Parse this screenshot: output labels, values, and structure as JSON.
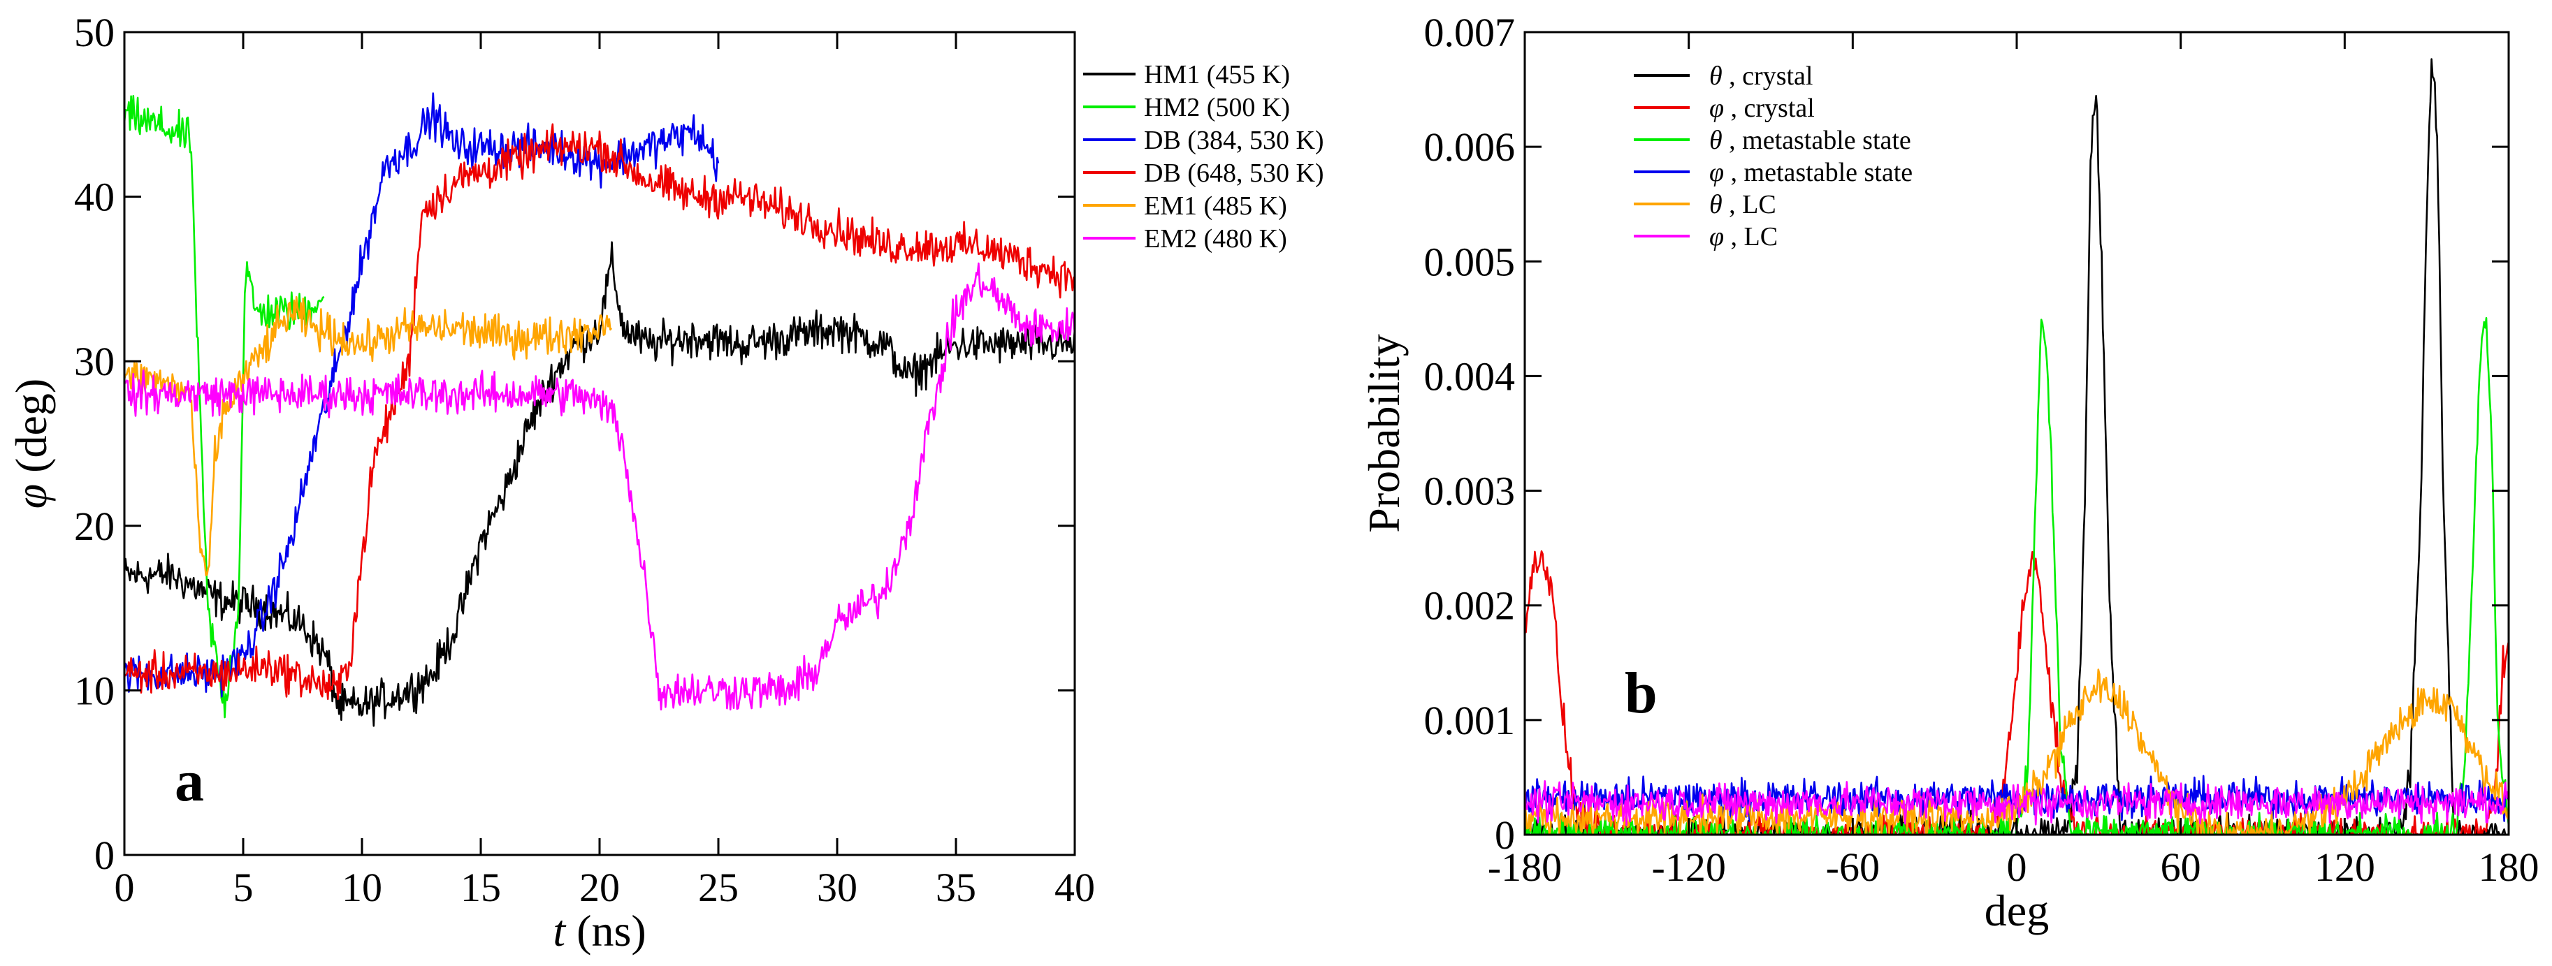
{
  "chart_data": [
    {
      "type": "line",
      "panel_label": "a",
      "xlabel_sym": "t",
      "xlabel_rest": " (ns)",
      "ylabel_sym": "φ",
      "ylabel_rest": " (deg)",
      "xlim": [
        0,
        40
      ],
      "ylim": [
        0,
        50
      ],
      "xticks": [
        0,
        5,
        10,
        15,
        20,
        25,
        30,
        35,
        40
      ],
      "yticks": [
        0,
        10,
        20,
        30,
        40,
        50
      ],
      "legend_position": "outside-right",
      "noise": 0.9,
      "series": [
        {
          "name": "HM1 (455 K)",
          "color": "#000000",
          "x": [
            0,
            2,
            4,
            6,
            7.5,
            8.5,
            9,
            10,
            11,
            12,
            13,
            14,
            15,
            16,
            17,
            18,
            19,
            20,
            20.5,
            21,
            22,
            24,
            26,
            28,
            30,
            32,
            33,
            35,
            36,
            38,
            40
          ],
          "y": [
            17,
            17,
            15.5,
            15,
            14,
            12,
            9,
            9,
            9.5,
            10,
            11,
            14,
            19,
            22,
            26,
            29,
            31,
            32,
            36,
            32,
            31,
            31.5,
            31,
            31.5,
            32,
            31,
            29,
            31,
            31,
            31,
            31
          ]
        },
        {
          "name": "HM2 (500 K)",
          "color": "#00ee00",
          "x": [
            0,
            1,
            2,
            2.8,
            3.1,
            3.5,
            4.2,
            4.8,
            5.1,
            5.5,
            6.5,
            7.5,
            8.4
          ],
          "y": [
            45,
            44.5,
            44,
            43.5,
            30,
            15,
            9,
            15,
            36,
            33,
            33,
            33,
            34
          ]
        },
        {
          "name": "DB (384, 530 K)",
          "color": "#0000ee",
          "x": [
            0,
            2,
            4,
            5,
            6,
            7,
            8,
            9,
            10,
            11,
            12,
            13,
            14,
            16,
            18,
            20,
            22,
            24,
            25
          ],
          "y": [
            11,
            11,
            11,
            12,
            15,
            19,
            25,
            30,
            36,
            42,
            43,
            45,
            43,
            43,
            43,
            42,
            43,
            44,
            42
          ]
        },
        {
          "name": "DB (648, 530 K)",
          "color": "#ee0000",
          "x": [
            0,
            2,
            4,
            6,
            8,
            9,
            9.5,
            10,
            10.5,
            11,
            12,
            12.5,
            14,
            16,
            18,
            20,
            22,
            24,
            26,
            28,
            30,
            32,
            34,
            36,
            38,
            40
          ],
          "y": [
            11,
            11,
            11,
            11.5,
            10.5,
            10,
            12,
            18,
            24,
            26,
            30,
            39,
            41,
            42,
            43,
            43,
            41,
            40,
            40,
            39,
            38,
            37,
            37,
            37,
            36,
            35
          ]
        },
        {
          "name": "EM1 (485 K)",
          "color": "#ffa500",
          "x": [
            0,
            1,
            2,
            2.8,
            3.1,
            3.5,
            3.8,
            4.2,
            5,
            6,
            7,
            8,
            10,
            12,
            14,
            16,
            18,
            20,
            20.5
          ],
          "y": [
            29,
            29,
            28.5,
            28,
            20,
            16,
            24,
            27,
            29,
            31,
            33,
            32,
            31,
            32,
            32,
            31.5,
            31.5,
            32,
            33
          ]
        },
        {
          "name": "EM2 (480 K)",
          "color": "#ff00ff",
          "x": [
            0,
            4,
            8,
            12,
            16,
            19,
            20.5,
            21,
            21.5,
            22,
            22.5,
            23,
            24,
            26,
            28,
            29,
            30,
            31,
            32,
            33,
            34,
            35,
            36,
            38,
            40
          ],
          "y": [
            28,
            28,
            28,
            28,
            28,
            28,
            27,
            25,
            20,
            16,
            10,
            10,
            10,
            10,
            10,
            11,
            14,
            15,
            16,
            20,
            27,
            33,
            35,
            32,
            32
          ]
        }
      ]
    },
    {
      "type": "line",
      "panel_label": "b",
      "xlabel": "deg",
      "ylabel": "Probability",
      "xlim": [
        -180,
        180
      ],
      "ylim": [
        0,
        0.007
      ],
      "xticks": [
        -180,
        -120,
        -60,
        0,
        60,
        120,
        180
      ],
      "yticks": [
        0,
        0.001,
        0.002,
        0.003,
        0.004,
        0.005,
        0.006,
        0.007
      ],
      "ytick_labels": [
        "0",
        "0.001",
        "0.002",
        "0.003",
        "0.004",
        "0.005",
        "0.006",
        "0.007"
      ],
      "legend_position": "top-left",
      "noise": 0.00012,
      "series": [
        {
          "name_sym": "θ",
          "name_rest": " , crystal",
          "color": "#000000",
          "x": [
            -180,
            18,
            22,
            25,
            27,
            29,
            31,
            34,
            38,
            140,
            144,
            148,
            150,
            152,
            154,
            156,
            160,
            180
          ],
          "y": [
            0,
            0,
            0.0005,
            0.003,
            0.0058,
            0.0066,
            0.005,
            0.002,
            0,
            0,
            0.0005,
            0.003,
            0.0055,
            0.0068,
            0.006,
            0.003,
            0,
            0
          ]
        },
        {
          "name_sym": "φ",
          "name_rest": " , crystal",
          "color": "#ee0000",
          "x": [
            -180,
            -177,
            -174,
            -170,
            -166,
            -162,
            -155,
            -10,
            -4,
            2,
            6,
            8,
            12,
            16,
            20,
            25,
            170,
            175,
            178,
            180
          ],
          "y": [
            0.0018,
            0.0023,
            0.0025,
            0.0021,
            0.001,
            0.0003,
            0,
            0,
            0.0005,
            0.0019,
            0.0025,
            0.0023,
            0.0013,
            0.0005,
            0.0001,
            0,
            0,
            0.0003,
            0.0015,
            0.0017
          ]
        },
        {
          "name_sym": "θ",
          "name_rest": " , metastable state",
          "color": "#00ee00",
          "x": [
            -180,
            0,
            4,
            7,
            9,
            11,
            13,
            16,
            20,
            160,
            164,
            167,
            170,
            172,
            174,
            176,
            180
          ],
          "y": [
            0,
            0,
            0.0005,
            0.003,
            0.0045,
            0.0042,
            0.003,
            0.0008,
            0,
            0,
            0.0006,
            0.0025,
            0.0044,
            0.0045,
            0.0032,
            0.001,
            0
          ]
        },
        {
          "name_sym": "φ",
          "name_rest": " , metastable state",
          "color": "#0000ee",
          "x": [
            -180,
            -90,
            0,
            90,
            180
          ],
          "y": [
            0.00032,
            0.00032,
            0.00032,
            0.00032,
            0.00032
          ]
        },
        {
          "name_sym": "θ",
          "name_rest": " , LC",
          "color": "#ffa500",
          "x": [
            -180,
            -10,
            0,
            10,
            20,
            30,
            40,
            50,
            60,
            75,
            90,
            105,
            120,
            135,
            150,
            160,
            170,
            180
          ],
          "y": [
            0.00015,
            0.00015,
            0.0002,
            0.0005,
            0.001,
            0.0013,
            0.0011,
            0.0006,
            0.0002,
            0,
            0,
            0.0001,
            0.0003,
            0.0008,
            0.0012,
            0.0011,
            0.0006,
            0.0002
          ]
        },
        {
          "name_sym": "φ",
          "name_rest": " , LC",
          "color": "#ff00ff",
          "x": [
            -180,
            -90,
            0,
            90,
            180
          ],
          "y": [
            0.00028,
            0.00028,
            0.00028,
            0.00028,
            0.00028
          ]
        }
      ]
    }
  ]
}
